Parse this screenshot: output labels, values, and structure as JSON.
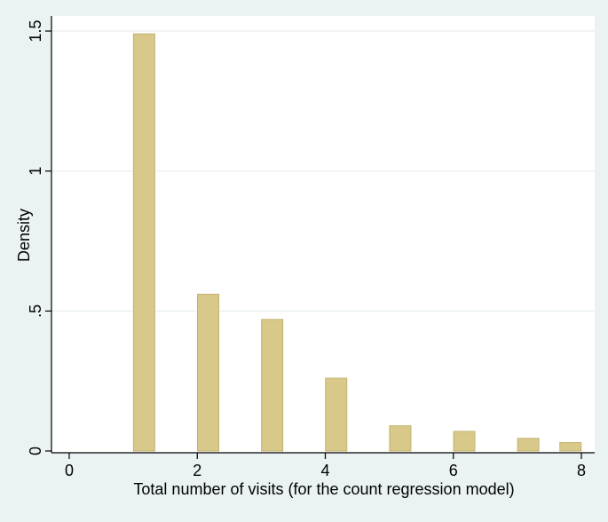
{
  "chart_data": {
    "type": "bar",
    "xlabel": "Total number of visits (for the count regression model)",
    "ylabel": "Density",
    "xlim": [
      0,
      8
    ],
    "ylim": [
      0,
      1.5
    ],
    "x_ticks": [
      {
        "value": 0,
        "label": "0"
      },
      {
        "value": 2,
        "label": "2"
      },
      {
        "value": 4,
        "label": "4"
      },
      {
        "value": 6,
        "label": "6"
      },
      {
        "value": 8,
        "label": "8"
      }
    ],
    "y_ticks": [
      {
        "value": 0,
        "label": "0"
      },
      {
        "value": 0.5,
        "label": ".5"
      },
      {
        "value": 1,
        "label": "1"
      },
      {
        "value": 1.5,
        "label": "1.5"
      }
    ],
    "grid": true,
    "bars": [
      {
        "x": 1.17,
        "value": 1.49
      },
      {
        "x": 2.17,
        "value": 0.56
      },
      {
        "x": 3.17,
        "value": 0.47
      },
      {
        "x": 4.17,
        "value": 0.26
      },
      {
        "x": 5.17,
        "value": 0.09
      },
      {
        "x": 6.17,
        "value": 0.07
      },
      {
        "x": 7.17,
        "value": 0.045
      },
      {
        "x": 7.83,
        "value": 0.03
      }
    ],
    "colors": {
      "background": "#eaf2f3",
      "plot_background": "#ffffff",
      "bar_fill": "#d8c98a",
      "bar_edge": "#c4b26f",
      "grid": "#e6eeee"
    }
  }
}
